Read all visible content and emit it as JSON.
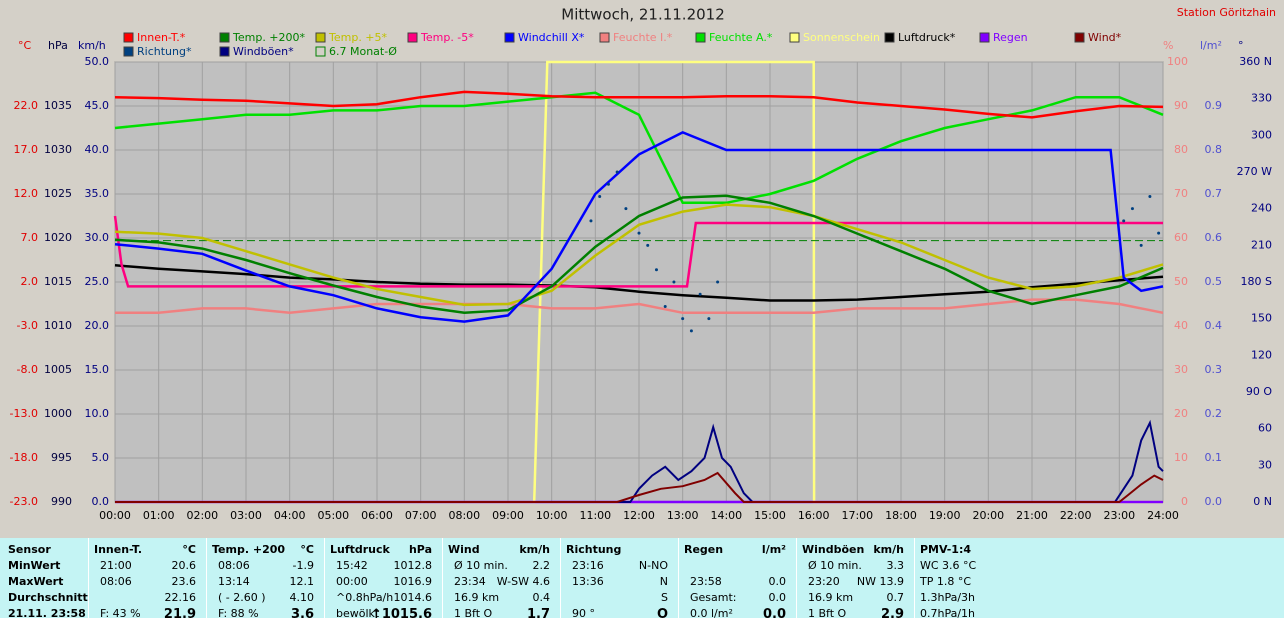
{
  "chart_data": {
    "type": "line",
    "title": "Mittwoch, 21.11.2012",
    "station": "Station Göritzhain",
    "grid": true,
    "x": [
      0,
      1,
      2,
      3,
      4,
      5,
      6,
      7,
      8,
      9,
      10,
      11,
      12,
      13,
      14,
      15,
      16,
      17,
      18,
      19,
      20,
      21,
      22,
      23,
      24
    ],
    "xlim": [
      0,
      24
    ],
    "xticks": [
      {
        "value": 0,
        "label": "00:00"
      },
      {
        "value": 1,
        "label": "01:00"
      },
      {
        "value": 2,
        "label": "02:00"
      },
      {
        "value": 3,
        "label": "03:00"
      },
      {
        "value": 4,
        "label": "04:00"
      },
      {
        "value": 5,
        "label": "05:00"
      },
      {
        "value": 6,
        "label": "06:00"
      },
      {
        "value": 7,
        "label": "07:00"
      },
      {
        "value": 8,
        "label": "08:00"
      },
      {
        "value": 9,
        "label": "09:00"
      },
      {
        "value": 10,
        "label": "10:00"
      },
      {
        "value": 11,
        "label": "11:00"
      },
      {
        "value": 12,
        "label": "12:00"
      },
      {
        "value": 13,
        "label": "13:00"
      },
      {
        "value": 14,
        "label": "14:00"
      },
      {
        "value": 15,
        "label": "15:00"
      },
      {
        "value": 16,
        "label": "16:00"
      },
      {
        "value": 17,
        "label": "17:00"
      },
      {
        "value": 18,
        "label": "18:00"
      },
      {
        "value": 19,
        "label": "19:00"
      },
      {
        "value": 20,
        "label": "20:00"
      },
      {
        "value": 21,
        "label": "21:00"
      },
      {
        "value": 22,
        "label": "22:00"
      },
      {
        "value": 23,
        "label": "23:00"
      },
      {
        "value": 24,
        "label": "24:00"
      }
    ],
    "axes": [
      {
        "name": "°C",
        "color": "#e00000",
        "lim": [
          -23,
          27
        ],
        "ticks": [
          {
            "value": -23,
            "label": "-23.0"
          },
          {
            "value": -18,
            "label": "-18.0"
          },
          {
            "value": -13,
            "label": "-13.0"
          },
          {
            "value": -8,
            "label": "-8.0"
          },
          {
            "value": -3,
            "label": "-3.0"
          },
          {
            "value": 2,
            "label": "2.0"
          },
          {
            "value": 7,
            "label": "7.0"
          },
          {
            "value": 12,
            "label": "12.0"
          },
          {
            "value": 17,
            "label": "17.0"
          },
          {
            "value": 22,
            "label": "22.0"
          }
        ]
      },
      {
        "name": "hPa",
        "color": "#000040",
        "lim": [
          990,
          1040
        ],
        "ticks": [
          990,
          995,
          1000,
          1005,
          1010,
          1015,
          1020,
          1025,
          1030,
          1035
        ]
      },
      {
        "name": "km/h",
        "color": "#000080",
        "grid": true,
        "lim": [
          0,
          50
        ],
        "ticks": [
          {
            "value": 0,
            "label": "0.0"
          },
          {
            "value": 5,
            "label": "5.0"
          },
          {
            "value": 10,
            "label": "10.0"
          },
          {
            "value": 15,
            "label": "15.0"
          },
          {
            "value": 20,
            "label": "20.0"
          },
          {
            "value": 25,
            "label": "25.0"
          },
          {
            "value": 30,
            "label": "30.0"
          },
          {
            "value": 35,
            "label": "35.0"
          },
          {
            "value": 40,
            "label": "40.0"
          },
          {
            "value": 45,
            "label": "45.0"
          },
          {
            "value": 50,
            "label": "50.0"
          }
        ]
      },
      {
        "name": "%",
        "color": "#f08080",
        "lim": [
          0,
          100
        ],
        "ticks": [
          0,
          10,
          20,
          30,
          40,
          50,
          60,
          70,
          80,
          90,
          100
        ]
      },
      {
        "name": "l/m²",
        "color": "#5050d0",
        "lim": [
          0,
          1
        ],
        "ticks": [
          {
            "value": 0,
            "label": "0.0"
          },
          {
            "value": 0.1,
            "label": "0.1"
          },
          {
            "value": 0.2,
            "label": "0.2"
          },
          {
            "value": 0.3,
            "label": "0.3"
          },
          {
            "value": 0.4,
            "label": "0.4"
          },
          {
            "value": 0.5,
            "label": "0.5"
          },
          {
            "value": 0.6,
            "label": "0.6"
          },
          {
            "value": 0.7,
            "label": "0.7"
          },
          {
            "value": 0.8,
            "label": "0.8"
          },
          {
            "value": 0.9,
            "label": "0.9"
          }
        ]
      },
      {
        "name": "°",
        "color": "#000080",
        "lim": [
          0,
          360
        ],
        "ticks": [
          {
            "value": 0,
            "label": "0 N"
          },
          30,
          60,
          {
            "value": 90,
            "label": "90 O"
          },
          120,
          150,
          {
            "value": 180,
            "label": "180 S"
          },
          210,
          240,
          {
            "value": 270,
            "label": "270 W"
          },
          300,
          330,
          {
            "value": 360,
            "label": "360 N"
          }
        ]
      }
    ],
    "series": [
      {
        "name": "Innen-T.*",
        "color": "#ff0000",
        "axis": 0,
        "values": [
          23.0,
          22.9,
          22.7,
          22.6,
          22.3,
          22.0,
          22.2,
          23.0,
          23.6,
          23.4,
          23.1,
          23.0,
          23.0,
          23.0,
          23.1,
          23.1,
          23.0,
          22.4,
          22.0,
          21.6,
          21.1,
          20.7,
          21.4,
          22.0,
          21.9
        ]
      },
      {
        "name": "Temp. +200*",
        "color": "#008000",
        "axis": 0,
        "values": [
          6.8,
          6.5,
          5.8,
          4.5,
          3.0,
          1.6,
          0.3,
          -0.8,
          -1.5,
          -1.2,
          1.5,
          6.0,
          9.5,
          11.6,
          11.8,
          11.0,
          9.5,
          7.5,
          5.5,
          3.5,
          1.0,
          -0.5,
          0.5,
          1.5,
          3.6
        ]
      },
      {
        "name": "Temp. +5*",
        "color": "#c0c000",
        "axis": 0,
        "values": [
          7.7,
          7.5,
          7.0,
          5.5,
          4.0,
          2.5,
          1.2,
          0.3,
          -0.6,
          -0.5,
          1.0,
          5.0,
          8.5,
          10.0,
          10.8,
          10.5,
          9.5,
          8.0,
          6.5,
          4.5,
          2.5,
          1.2,
          1.5,
          2.5,
          4.0
        ]
      },
      {
        "name": "Temp. -5*",
        "color": "#ff0080",
        "axis": 0,
        "x": [
          0,
          0.15,
          0.3,
          13.1,
          13.3,
          24
        ],
        "values": [
          9.5,
          4.0,
          1.5,
          1.5,
          8.7,
          8.7
        ]
      },
      {
        "name": "Windchill X*",
        "color": "#0000ff",
        "axis": 0,
        "x": [
          0,
          1,
          2,
          3,
          4,
          5,
          6,
          7,
          8,
          9,
          10,
          11,
          12,
          13,
          14,
          15,
          16,
          17,
          18,
          19,
          20,
          21,
          22,
          22.8,
          23.1,
          23.5,
          24
        ],
        "values": [
          6.3,
          5.8,
          5.2,
          3.3,
          1.5,
          0.5,
          -1.0,
          -2.0,
          -2.5,
          -1.8,
          3.5,
          12.0,
          16.5,
          19.0,
          17.0,
          17.0,
          17.0,
          17.0,
          17.0,
          17.0,
          17.0,
          17.0,
          17.0,
          17.0,
          2.5,
          1.0,
          1.5
        ]
      },
      {
        "name": "Feuchte I.*",
        "color": "#f08080",
        "axis": 3,
        "values": [
          43,
          43,
          44,
          44,
          43,
          44,
          45,
          45,
          45,
          45,
          44,
          44,
          45,
          43,
          43,
          43,
          43,
          44,
          44,
          44,
          45,
          46,
          46,
          45,
          43
        ]
      },
      {
        "name": "Feuchte A.*",
        "color": "#00e000",
        "axis": 3,
        "values": [
          85,
          86,
          87,
          88,
          88,
          89,
          89,
          90,
          90,
          91,
          92,
          93,
          88,
          68,
          68,
          70,
          73,
          78,
          82,
          85,
          87,
          89,
          92,
          92,
          88
        ]
      },
      {
        "name": "Sonnenschein",
        "color": "#ffff80",
        "axis": 3,
        "x": [
          0,
          9.6,
          9.9,
          16,
          16.01,
          24
        ],
        "values": [
          0,
          0,
          100,
          100,
          0,
          0
        ]
      },
      {
        "name": "Luftdruck*",
        "color": "#000000",
        "axis": 1,
        "values": [
          1016.9,
          1016.5,
          1016.2,
          1015.9,
          1015.5,
          1015.3,
          1015.0,
          1014.8,
          1014.7,
          1014.7,
          1014.6,
          1014.4,
          1013.9,
          1013.5,
          1013.2,
          1012.9,
          1012.9,
          1013.0,
          1013.3,
          1013.6,
          1013.9,
          1014.4,
          1014.8,
          1015.2,
          1015.6
        ]
      },
      {
        "name": "Regen",
        "color": "#8000ff",
        "axis": 4,
        "x": [
          0,
          24
        ],
        "values": [
          0,
          0
        ]
      },
      {
        "name": "Wind*",
        "color": "#800000",
        "axis": 2,
        "x": [
          0,
          11.5,
          12,
          12.5,
          13,
          13.5,
          13.8,
          14.2,
          14.4,
          23,
          23.2,
          23.5,
          23.8,
          24
        ],
        "values": [
          0,
          0,
          0.8,
          1.5,
          1.8,
          2.5,
          3.3,
          1.0,
          0,
          0,
          0.8,
          2.0,
          3.0,
          2.5
        ]
      },
      {
        "name": "Richtung*",
        "color": "#004080",
        "axis": 5,
        "marker": "dot",
        "x": [
          10.9,
          11.1,
          11.3,
          11.5,
          11.7,
          12.0,
          12.2,
          12.4,
          12.6,
          12.8,
          13.0,
          13.2,
          13.4,
          13.6,
          13.8,
          23.1,
          23.3,
          23.5,
          23.7,
          23.9
        ],
        "values": [
          230,
          250,
          260,
          270,
          240,
          220,
          210,
          190,
          160,
          180,
          150,
          140,
          170,
          150,
          180,
          230,
          240,
          210,
          250,
          220
        ]
      },
      {
        "name": "Windböen*",
        "color": "#000080",
        "axis": 2,
        "x": [
          0,
          11.8,
          12,
          12.3,
          12.6,
          12.9,
          13.2,
          13.5,
          13.7,
          13.9,
          14.1,
          14.4,
          14.6,
          22.9,
          23.1,
          23.3,
          23.5,
          23.7,
          23.9,
          24
        ],
        "values": [
          0,
          0,
          1.5,
          3,
          4,
          2.5,
          3.5,
          5,
          8.5,
          5,
          4,
          1,
          0,
          0,
          1.5,
          3,
          7,
          9,
          4,
          3.5
        ]
      },
      {
        "name": "6.7 Monat-Ø",
        "color": "#008000",
        "axis": 0,
        "dashed": true,
        "x": [
          0,
          24
        ],
        "values": [
          6.7,
          6.7
        ]
      }
    ]
  },
  "table": {
    "row_labels": [
      "Sensor",
      "MinWert",
      "MaxWert",
      "Durchschnitt",
      "21.11. 23:58"
    ],
    "groups": [
      {
        "name": "Innen-T.",
        "unit": "°C",
        "rows": [
          [
            "21:00",
            "20.6"
          ],
          [
            "08:06",
            "23.6"
          ],
          [
            null,
            "22.16"
          ],
          [
            "F: 43 %",
            "21.9"
          ]
        ]
      },
      {
        "name": "Temp. +200",
        "unit": "°C",
        "rows": [
          [
            "08:06",
            "-1.9"
          ],
          [
            "13:14",
            "12.1"
          ],
          [
            "( - 2.60 )",
            "4.10"
          ],
          [
            "F: 88 %",
            "3.6"
          ]
        ]
      },
      {
        "name": "Luftdruck",
        "unit": "hPa",
        "rows": [
          [
            "15:42",
            "1012.8"
          ],
          [
            "00:00",
            "1016.9"
          ],
          [
            "^0.8hPa/h",
            "1014.6"
          ],
          [
            "bewölkt",
            "↑1015.6"
          ]
        ]
      },
      {
        "name": "Wind",
        "unit": "km/h",
        "rows": [
          [
            "Ø 10 min.",
            "2.2"
          ],
          [
            "23:34",
            "W-SW 4.6"
          ],
          [
            "16.9 km",
            "0.4"
          ],
          [
            "1 Bft O",
            "1.7"
          ]
        ]
      },
      {
        "name": "Richtung",
        "unit": null,
        "rows": [
          [
            "23:16",
            "N-NO"
          ],
          [
            "13:36",
            "N"
          ],
          [
            null,
            "S"
          ],
          [
            "90 °",
            "O"
          ]
        ]
      },
      {
        "name": "Regen",
        "unit": "l/m²",
        "rows": [
          [
            null,
            null
          ],
          [
            "23:58",
            "0.0"
          ],
          [
            "Gesamt:",
            "0.0"
          ],
          [
            "0.0 l/m²",
            "0.0"
          ]
        ]
      },
      {
        "name": "Windböen",
        "unit": "km/h",
        "rows": [
          [
            "Ø 10 min.",
            "3.3"
          ],
          [
            "23:20",
            "NW 13.9"
          ],
          [
            "16.9 km",
            "0.7"
          ],
          [
            "1 Bft O",
            "2.9"
          ]
        ]
      },
      {
        "name": "PMV-1:4",
        "unit": null,
        "rows": [
          [
            "WC 3.6 °C"
          ],
          [
            "TP 1.8 °C"
          ],
          [
            "1.3hPa/3h"
          ],
          [
            "0.7hPa/1h"
          ]
        ]
      }
    ]
  }
}
